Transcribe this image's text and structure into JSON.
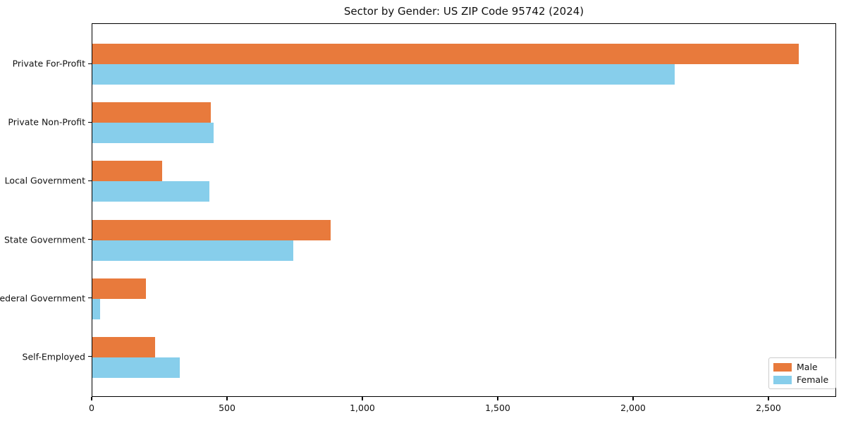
{
  "chart_data": {
    "type": "bar",
    "orientation": "horizontal",
    "title": "Sector by Gender: US ZIP Code 95742 (2024)",
    "categories": [
      "Private For-Profit",
      "Private Non-Profit",
      "Local Government",
      "State Government",
      "Federal Government",
      "Self-Employed"
    ],
    "series": [
      {
        "name": "Male",
        "color": "#e87a3c",
        "values": [
          2610,
          437,
          257,
          879,
          198,
          232
        ]
      },
      {
        "name": "Female",
        "color": "#87ceeb",
        "values": [
          2151,
          448,
          431,
          742,
          29,
          323
        ]
      }
    ],
    "xlabel": "",
    "ylabel": "",
    "xlim": [
      0,
      2750
    ],
    "xticks": [
      0,
      500,
      1000,
      1500,
      2000,
      2500
    ],
    "xtick_labels": [
      "0",
      "500",
      "1,000",
      "1,500",
      "2,000",
      "2,500"
    ],
    "grid": false,
    "legend_position": "lower right",
    "colors": {
      "male": "#e87a3c",
      "female": "#87ceeb",
      "spine": "#000000",
      "background": "#ffffff",
      "legend_border": "#cccccc"
    }
  }
}
